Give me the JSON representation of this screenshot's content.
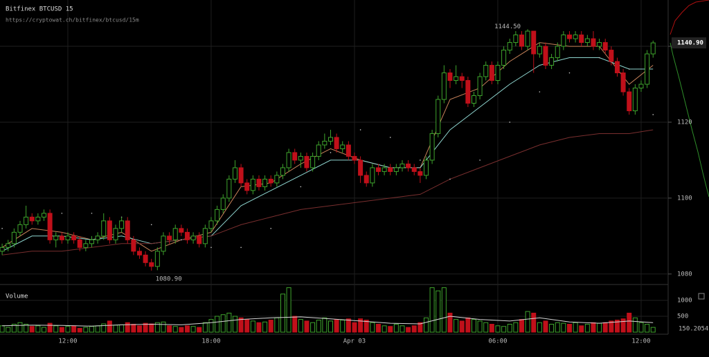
{
  "header": {
    "title": "Bitfinex BTCUSD 15",
    "url": "https://cryptowat.ch/bitfinex/btcusd/15m"
  },
  "chart_data": [
    {
      "type": "candlestick",
      "categories": [
        null,
        null,
        null,
        null,
        null,
        null,
        null,
        null,
        null,
        null,
        null,
        "12:00",
        null,
        null,
        null,
        null,
        null,
        null,
        null,
        null,
        null,
        null,
        null,
        null,
        null,
        null,
        null,
        null,
        null,
        null,
        null,
        null,
        null,
        null,
        null,
        "18:00",
        null,
        null,
        null,
        null,
        null,
        null,
        null,
        null,
        null,
        null,
        null,
        null,
        null,
        null,
        null,
        null,
        null,
        null,
        null,
        null,
        null,
        null,
        null,
        "Apr 03",
        null,
        null,
        null,
        null,
        null,
        null,
        null,
        null,
        null,
        null,
        null,
        null,
        null,
        null,
        null,
        null,
        null,
        null,
        null,
        null,
        null,
        null,
        null,
        "06:00",
        null,
        null,
        null,
        null,
        null,
        null,
        null,
        null,
        null,
        null,
        null,
        null,
        null,
        null,
        null,
        null,
        null,
        null,
        null,
        null,
        null,
        null,
        null,
        "12:00",
        null,
        null
      ],
      "open": [
        1086,
        1087,
        1088,
        1091,
        1093,
        1095,
        1094,
        1095,
        1096,
        1089,
        1090,
        1089,
        1090,
        1089,
        1087,
        1088,
        1089,
        1090,
        1094,
        1089,
        1092,
        1094,
        1089,
        1086,
        1085,
        1083,
        1082,
        1086,
        1090,
        1089,
        1092,
        1091,
        1089,
        1090,
        1088,
        1092,
        1094,
        1097,
        1100,
        1105,
        1108,
        1104,
        1102,
        1105,
        1103,
        1105,
        1104,
        1106,
        1108,
        1112,
        1110,
        1111,
        1108,
        1111,
        1114,
        1115,
        1116,
        1113,
        1114,
        1111,
        1110,
        1106,
        1104,
        1108,
        1107,
        1108,
        1107,
        1108,
        1109,
        1108,
        1107,
        1106,
        1110,
        1117,
        1126,
        1133,
        1131,
        1132,
        1131,
        1125,
        1127,
        1132,
        1135,
        1131,
        1135,
        1139,
        1141,
        1143,
        1140,
        1144,
        1138,
        1140,
        1135,
        1137,
        1140,
        1143,
        1142,
        1143,
        1141,
        1142,
        1140,
        1141,
        1139,
        1136,
        1133,
        1128,
        1123,
        1129,
        1130,
        1138
      ],
      "high": [
        1088,
        1089,
        1092,
        1094,
        1098,
        1096,
        1096,
        1097,
        1097,
        1091,
        1091,
        1091,
        1091,
        1090,
        1089,
        1090,
        1091,
        1096,
        1095,
        1093,
        1095,
        1095,
        1090,
        1087,
        1086,
        1084,
        1087,
        1091,
        1091,
        1093,
        1093,
        1092,
        1091,
        1091,
        1093,
        1095,
        1098,
        1101,
        1106,
        1110,
        1109,
        1105,
        1106,
        1106,
        1106,
        1106,
        1107,
        1109,
        1113,
        1113,
        1112,
        1112,
        1112,
        1115,
        1117,
        1118,
        1117,
        1115,
        1115,
        1112,
        1111,
        1107,
        1109,
        1109,
        1109,
        1109,
        1109,
        1110,
        1110,
        1109,
        1108,
        1111,
        1118,
        1127,
        1135,
        1134,
        1135,
        1133,
        1132,
        1128,
        1133,
        1136,
        1136,
        1136,
        1140,
        1142,
        1144,
        1144,
        1144.5,
        1144,
        1141,
        1141,
        1138,
        1141,
        1144,
        1144,
        1144,
        1144,
        1143,
        1144,
        1142,
        1142,
        1140,
        1137,
        1134,
        1129,
        1130,
        1131,
        1139,
        1141.5
      ],
      "low": [
        1085,
        1086,
        1087,
        1090,
        1092,
        1093,
        1093,
        1094,
        1088,
        1087,
        1088,
        1088,
        1088,
        1086,
        1086,
        1087,
        1088,
        1089,
        1088,
        1088,
        1091,
        1088,
        1085,
        1084,
        1082,
        1080.9,
        1081,
        1085,
        1088,
        1088,
        1090,
        1088,
        1088,
        1087,
        1087,
        1091,
        1093,
        1096,
        1099,
        1104,
        1103,
        1101,
        1101,
        1102,
        1102,
        1103,
        1103,
        1105,
        1107,
        1109,
        1108,
        1107,
        1107,
        1110,
        1113,
        1114,
        1112,
        1112,
        1110,
        1109,
        1104,
        1103,
        1103,
        1106,
        1106,
        1106,
        1106,
        1107,
        1107,
        1106,
        1104,
        1105,
        1109,
        1116,
        1125,
        1129,
        1130,
        1129,
        1124,
        1124,
        1126,
        1131,
        1130,
        1130,
        1134,
        1138,
        1140,
        1139,
        1139,
        1133,
        1137,
        1134,
        1134,
        1136,
        1139,
        1141,
        1141,
        1140,
        1140,
        1139,
        1139,
        1138,
        1135,
        1132,
        1127,
        1122,
        1122,
        1128,
        1129,
        1137
      ],
      "close": [
        1087,
        1088,
        1091,
        1093,
        1095,
        1094,
        1095,
        1096,
        1089,
        1090,
        1089,
        1090,
        1089,
        1087,
        1088,
        1089,
        1090,
        1094,
        1089,
        1092,
        1094,
        1089,
        1086,
        1085,
        1083,
        1082,
        1086,
        1090,
        1089,
        1092,
        1091,
        1089,
        1090,
        1088,
        1092,
        1094,
        1097,
        1100,
        1105,
        1108,
        1104,
        1102,
        1105,
        1103,
        1105,
        1104,
        1106,
        1108,
        1112,
        1110,
        1111,
        1108,
        1111,
        1114,
        1115,
        1116,
        1113,
        1114,
        1111,
        1110,
        1106,
        1104,
        1108,
        1107,
        1108,
        1107,
        1108,
        1109,
        1108,
        1107,
        1106,
        1110,
        1117,
        1126,
        1133,
        1131,
        1132,
        1131,
        1125,
        1127,
        1132,
        1135,
        1131,
        1135,
        1139,
        1141,
        1143,
        1140,
        1144,
        1138,
        1140,
        1135,
        1137,
        1140,
        1143,
        1142,
        1143,
        1141,
        1142,
        1140,
        1141,
        1139,
        1136,
        1133,
        1128,
        1123,
        1129,
        1130,
        1138,
        1140.9
      ],
      "last_label": "1140.90",
      "high_label": "1144.50",
      "low_label": "1080.90",
      "up_color": "#3fa52d",
      "down_color": "#c0101a",
      "ylim": [
        1077.6,
        1152.2
      ],
      "yticks": [
        1080,
        1100,
        1120,
        1140
      ],
      "grid": true,
      "lines": [
        {
          "color": "#c9835a",
          "style": "solid",
          "x": [
            0,
            5,
            10,
            15,
            20,
            25,
            30,
            35,
            40,
            45,
            50,
            55,
            60,
            65,
            70,
            75,
            80,
            85,
            90,
            95,
            100,
            105,
            109
          ],
          "values": [
            1087,
            1092,
            1091,
            1089,
            1091,
            1086,
            1089,
            1091,
            1103,
            1104,
            1109,
            1113,
            1110,
            1108,
            1108,
            1126,
            1129,
            1136,
            1141,
            1140,
            1140,
            1130,
            1135
          ]
        },
        {
          "color": "#8fd6d0",
          "style": "solid",
          "x": [
            0,
            5,
            10,
            15,
            20,
            25,
            30,
            35,
            40,
            45,
            50,
            55,
            60,
            65,
            70,
            75,
            80,
            85,
            90,
            95,
            100,
            105,
            109
          ],
          "values": [
            1086,
            1090,
            1090,
            1089,
            1090,
            1088,
            1089,
            1090,
            1098,
            1102,
            1106,
            1110,
            1110,
            1108,
            1108,
            1118,
            1124,
            1130,
            1135,
            1137,
            1137,
            1134,
            1134
          ]
        },
        {
          "color": "#7a2f2f",
          "style": "solid",
          "x": [
            0,
            5,
            10,
            15,
            20,
            25,
            30,
            35,
            40,
            45,
            50,
            55,
            60,
            65,
            70,
            75,
            80,
            85,
            90,
            95,
            100,
            105,
            109
          ],
          "values": [
            1085,
            1086,
            1086,
            1087,
            1088,
            1088,
            1089,
            1090,
            1093,
            1095,
            1097,
            1098,
            1099,
            1100,
            1101,
            1105,
            1108,
            1111,
            1114,
            1116,
            1117,
            1117,
            1118
          ]
        },
        {
          "color": "#cccccc",
          "style": "dotted",
          "x": [
            0,
            5,
            10,
            15,
            20,
            25,
            30,
            35,
            40,
            45,
            50,
            55,
            60,
            65,
            70,
            75,
            80,
            85,
            90,
            95,
            100,
            105,
            109
          ],
          "values": [
            1092,
            1095,
            1096,
            1096,
            1095,
            1093,
            1089,
            1087,
            1087,
            1092,
            1103,
            1112,
            1118,
            1116,
            1110,
            1105,
            1110,
            1120,
            1128,
            1133,
            1137,
            1134,
            1122
          ]
        }
      ]
    },
    {
      "type": "volume",
      "title": "Volume",
      "values": [
        200,
        150,
        250,
        300,
        250,
        180,
        200,
        150,
        280,
        200,
        150,
        180,
        200,
        120,
        150,
        180,
        200,
        260,
        350,
        220,
        230,
        300,
        250,
        200,
        280,
        260,
        300,
        320,
        200,
        180,
        150,
        200,
        180,
        150,
        300,
        400,
        500,
        550,
        600,
        500,
        450,
        400,
        350,
        300,
        320,
        380,
        450,
        1200,
        1400,
        500,
        400,
        350,
        300,
        380,
        450,
        350,
        400,
        380,
        420,
        300,
        420,
        380,
        300,
        250,
        200,
        180,
        250,
        200,
        150,
        200,
        300,
        450,
        1400,
        1300,
        1400,
        600,
        400,
        350,
        450,
        400,
        350,
        300,
        250,
        200,
        180,
        250,
        300,
        400,
        650,
        600,
        300,
        350,
        250,
        300,
        280,
        250,
        300,
        200,
        250,
        300,
        280,
        300,
        350,
        380,
        420,
        600,
        450,
        300,
        250,
        150.20549
      ],
      "ylim": [
        0,
        1370
      ],
      "yticks": [
        500,
        1000
      ],
      "line": {
        "color": "#d8d8d8",
        "x": [
          0,
          5,
          10,
          15,
          20,
          25,
          30,
          35,
          40,
          45,
          50,
          55,
          60,
          65,
          70,
          75,
          80,
          85,
          90,
          95,
          100,
          105,
          109
        ],
        "values": [
          200,
          220,
          210,
          190,
          230,
          250,
          230,
          300,
          400,
          450,
          480,
          420,
          350,
          280,
          260,
          500,
          400,
          350,
          450,
          320,
          280,
          350,
          300
        ]
      }
    }
  ]
}
